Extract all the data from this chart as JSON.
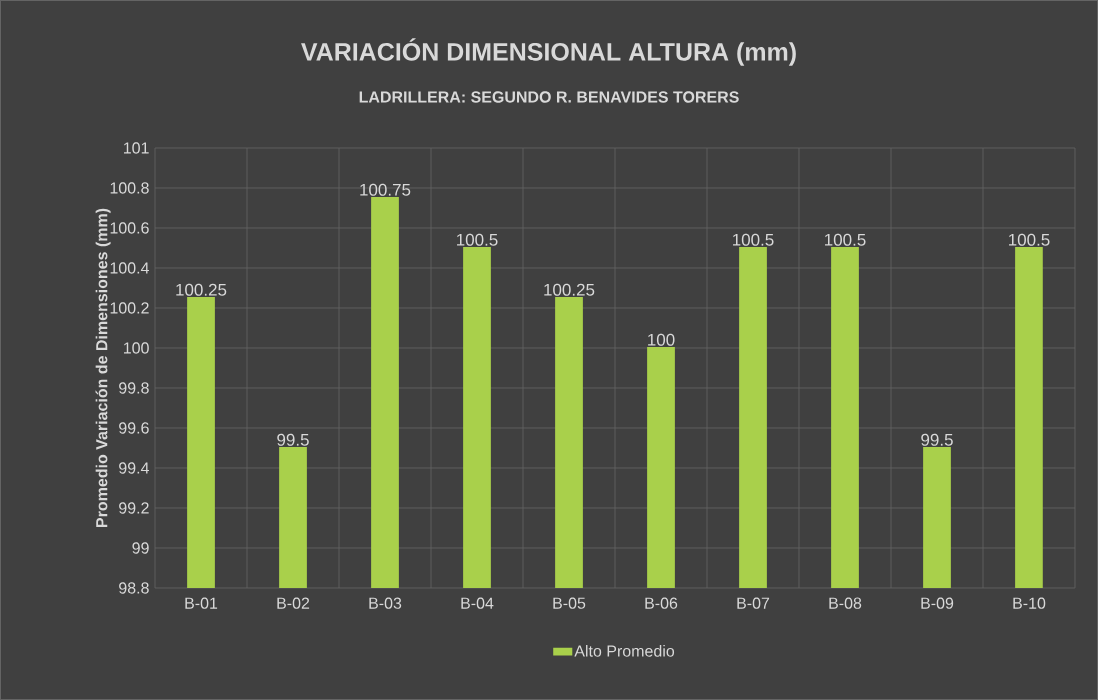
{
  "chart_data": {
    "type": "bar",
    "title": "VARIACIÓN DIMENSIONAL ALTURA (mm)",
    "subtitle": "LADRILLERA: SEGUNDO R. BENAVIDES TORERS",
    "ylabel": "Promedio Variación de Dimensiones (mm)",
    "categories": [
      "B-01",
      "B-02",
      "B-03",
      "B-04",
      "B-05",
      "B-06",
      "B-07",
      "B-08",
      "B-09",
      "B-10"
    ],
    "series": [
      {
        "name": "Alto Promedio",
        "color": "#a9d04b",
        "values": [
          100.25,
          99.5,
          100.75,
          100.5,
          100.25,
          100,
          100.5,
          100.5,
          99.5,
          100.5
        ]
      }
    ],
    "ylim": [
      98.8,
      101
    ],
    "yticks": [
      98.8,
      99,
      99.2,
      99.4,
      99.6,
      99.8,
      100,
      100.2,
      100.4,
      100.6,
      100.8,
      101
    ],
    "grid": true,
    "legend": "bottom",
    "data_labels": true
  }
}
